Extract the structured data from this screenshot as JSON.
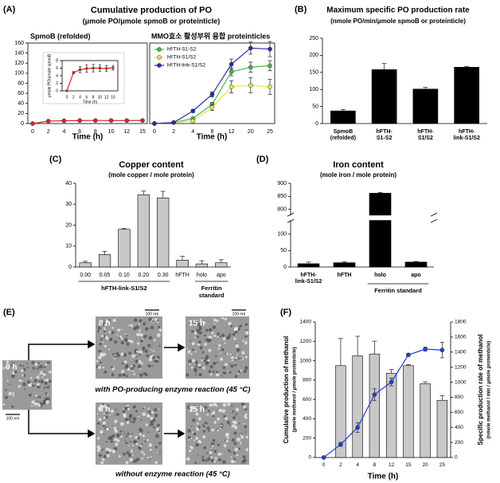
{
  "chart_data": [
    {
      "type": "line",
      "panel": "(A)",
      "title": "Cumulative production of PO",
      "subtitle": "(μmole PO/μmole spmoB or proteinticle)",
      "plot_title": "SpmoB (refolded)",
      "categories": [
        "0",
        "2",
        "4",
        "6",
        "8",
        "10",
        "12",
        "15"
      ],
      "values": [
        0,
        4.8,
        5.6,
        5.9,
        6.0,
        6.0,
        5.9,
        6.1
      ],
      "errors": [
        0,
        0.3,
        0.8,
        1.0,
        1.0,
        0.9,
        0.8,
        0.6
      ],
      "color": "#d62728",
      "ylim": [
        0,
        160
      ],
      "yticks": [
        0,
        20,
        40,
        60,
        80,
        100,
        120,
        140,
        160
      ],
      "xlabel": "Time (h)"
    },
    {
      "type": "line",
      "categories": [
        "0",
        "2",
        "4",
        "6",
        "8",
        "10",
        "12",
        "15"
      ],
      "values": [
        0,
        4.8,
        5.6,
        5.9,
        6.0,
        6.0,
        5.9,
        6.1
      ],
      "errors": [
        0,
        0.3,
        0.8,
        1.0,
        1.0,
        0.9,
        0.8,
        0.6
      ],
      "color": "#d62728",
      "ylim": [
        0,
        8
      ],
      "yticks": [
        0,
        2,
        4,
        6,
        8
      ],
      "xlabel": "Time (h)",
      "ylabel": "μmole PO/μmole spmoB"
    },
    {
      "type": "line",
      "plot_title": "MMO효소 활성부위 융합 proteinticles",
      "categories": [
        "0",
        "2",
        "4",
        "8",
        "12",
        "20",
        "25"
      ],
      "ylim": [
        0,
        160
      ],
      "xlabel": "Time (h)",
      "legend": "upper left",
      "series": [
        {
          "name": "hFTH-S1-S2",
          "color": "#49b649",
          "values": [
            0,
            2,
            10,
            38,
            103,
            112,
            115
          ],
          "errors": [
            0,
            1,
            2,
            4,
            8,
            10,
            10
          ]
        },
        {
          "name": "hFTH-S1/S2",
          "color": "#e6e34a",
          "values": [
            0,
            2,
            5,
            32,
            73,
            76,
            73
          ],
          "errors": [
            0,
            1,
            2,
            6,
            12,
            15,
            15
          ]
        },
        {
          "name": "hFTH-link-S1/S2",
          "color": "#2b2ba6",
          "values": [
            0,
            2,
            25,
            58,
            118,
            150,
            148
          ],
          "errors": [
            0,
            1,
            3,
            5,
            10,
            12,
            15
          ]
        }
      ]
    },
    {
      "type": "bar",
      "panel": "(B)",
      "title": "Maximum specific PO production rate",
      "subtitle": "(nmole PO/min/μmole spmoB or proteinticle)",
      "categories": [
        "SpmoB (refolded)",
        "hFTH-S1-S2",
        "hFTH-S1/S2",
        "hFTH-link-S1/S2"
      ],
      "values": [
        37,
        158,
        101,
        165
      ],
      "errors": [
        4,
        18,
        5,
        2
      ],
      "color": "#000000",
      "ylim": [
        0,
        250
      ],
      "yticks": [
        0,
        50,
        100,
        150,
        200,
        250
      ]
    },
    {
      "type": "bar",
      "panel": "(C)",
      "title": "Copper content",
      "subtitle": "(mole copper / mole protein)",
      "categories": [
        "0.00",
        "0.05",
        "0.10",
        "0.20",
        "0.30",
        "hFTH",
        "holo",
        "apo"
      ],
      "values": [
        2,
        6,
        18,
        34.5,
        33,
        3.3,
        1.5,
        2
      ],
      "errors": [
        0.7,
        1.5,
        0.4,
        1.8,
        3.2,
        1.8,
        1.5,
        1.5
      ],
      "color": "#c8c8c8",
      "ylim": [
        0,
        40
      ],
      "yticks": [
        0,
        10,
        20,
        30,
        40
      ],
      "groups": [
        "hFTH-link-S1/S2",
        "Ferritin standard"
      ]
    },
    {
      "type": "bar",
      "panel": "(D)",
      "title": "Iron content",
      "subtitle": "(mole iron / mole protein)",
      "categories": [
        "hFTH-link-S1/S2",
        "hFTH",
        "holo",
        "apo"
      ],
      "values": [
        10,
        13,
        862,
        15
      ],
      "errors": [
        5,
        3,
        3,
        2
      ],
      "color": "#000000",
      "ylim": [
        0,
        900
      ],
      "ybreak": [
        140,
        780
      ],
      "yticks": [
        0,
        50,
        100,
        800,
        850,
        900
      ],
      "groups": [
        "Ferritin standard"
      ]
    },
    {
      "type": "combo",
      "panel": "(F)",
      "categories": [
        "0",
        "2",
        "4",
        "8",
        "12",
        "15",
        "20",
        "25"
      ],
      "xlabel": "Time (h)",
      "ylabel": "Cumulative production of methanol",
      "ylabel_unit": "(μmole methanol / μmole proteinticle)",
      "y2label": "Specific production rate of methanol",
      "y2label_unit": "(nmole methanol / min / μmole proteinticle)",
      "ylim": [
        0,
        1400
      ],
      "yticks": [
        0,
        200,
        400,
        600,
        800,
        1000,
        1200,
        1400
      ],
      "y2lim": [
        0,
        1800
      ],
      "y2ticks": [
        0,
        200,
        400,
        600,
        800,
        1000,
        1200,
        1400,
        1600,
        1800
      ],
      "series": [
        {
          "type": "bar",
          "axis": "y2",
          "color": "#c8c8c8",
          "values": [
            0,
            1220,
            1350,
            1375,
            1120,
            1220,
            980,
            760
          ],
          "errors": [
            0,
            360,
            260,
            170,
            50,
            15,
            25,
            60
          ]
        },
        {
          "type": "line",
          "color": "#1f3fd6",
          "values": [
            0,
            135,
            310,
            650,
            780,
            1060,
            1120,
            1110
          ],
          "errors": [
            0,
            20,
            50,
            60,
            40,
            15,
            20,
            80
          ]
        }
      ]
    }
  ],
  "micrographs": {
    "panel": "(E)",
    "images": [
      {
        "time": "0 h",
        "scale": "100 nm"
      },
      {
        "time": "8 h",
        "scale": "100 nm"
      },
      {
        "time": "15 h",
        "scale": "100 nm"
      },
      {
        "time": "8 h"
      },
      {
        "time": "15 h"
      }
    ],
    "captions": [
      "with PO-producing enzyme reaction (45 °C)",
      "without enzyme reaction (45 °C)"
    ]
  }
}
